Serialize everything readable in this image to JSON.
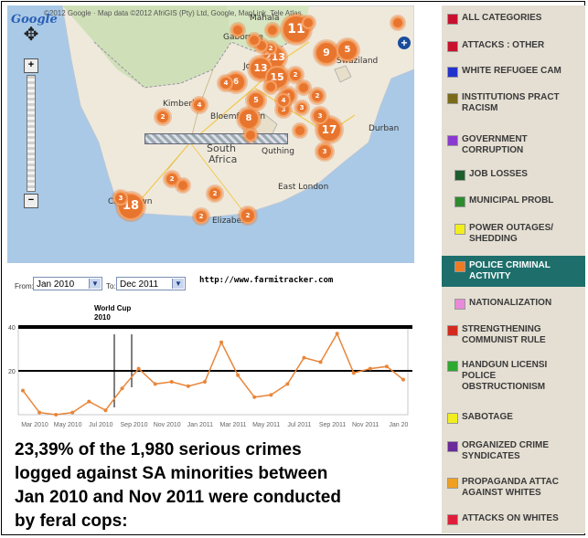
{
  "map": {
    "attribution": "©2012 Google · Map data ©2012 AfriGIS (Pty) Ltd, Google, MapLink, Tele Atlas",
    "logo": "Google",
    "place_labels": [
      {
        "text": "Mahala",
        "cls": ""
      },
      {
        "text": "Gaborone",
        "cls": ""
      },
      {
        "text": "Johann",
        "cls": ""
      },
      {
        "text": "Bloemfontein",
        "cls": ""
      },
      {
        "text": "South",
        "cls": "big"
      },
      {
        "text": "Africa",
        "cls": "big"
      },
      {
        "text": "Quthing",
        "cls": ""
      },
      {
        "text": "East London",
        "cls": ""
      },
      {
        "text": "Swaziland",
        "cls": ""
      },
      {
        "text": "Cape Town",
        "cls": ""
      },
      {
        "text": "Elizabeth",
        "cls": ""
      },
      {
        "text": "Kimberley",
        "cls": ""
      },
      {
        "text": "Durban",
        "cls": ""
      }
    ],
    "clusters": [
      {
        "label": "11"
      },
      {
        "label": "213"
      },
      {
        "label": "13"
      },
      {
        "label": "15"
      },
      {
        "label": "9"
      },
      {
        "label": "5"
      },
      {
        "label": "6"
      },
      {
        "label": "8"
      },
      {
        "label": "17"
      },
      {
        "label": "18"
      },
      {
        "label": "5"
      },
      {
        "label": "4"
      },
      {
        "label": "3"
      },
      {
        "label": "3"
      },
      {
        "label": "2"
      },
      {
        "label": "2"
      },
      {
        "label": "3"
      },
      {
        "label": "4"
      },
      {
        "label": "2"
      },
      {
        "label": "2"
      },
      {
        "label": "4"
      },
      {
        "label": "4"
      },
      {
        "label": "3"
      },
      {
        "label": "2"
      },
      {
        "label": "2"
      },
      {
        "label": "2"
      },
      {
        "label": "2"
      },
      {
        "label": "3"
      }
    ]
  },
  "controls": {
    "from_label": "From:",
    "from_value": "Jan 2010",
    "to_label": "To:",
    "to_value": "Dec 2011",
    "url": "http://www.farmitracker.com"
  },
  "chart_data": {
    "type": "line",
    "annotation": "World Cup 2010",
    "y_ticks": [
      "40",
      "20"
    ],
    "ylim": [
      0,
      40
    ],
    "x_tick_labels": [
      "Mar 2010",
      "May 2010",
      "Jul 2010",
      "Sep 2010",
      "Nov 2010",
      "Jan 2011",
      "Mar 2011",
      "May 2011",
      "Jul 2011",
      "Sep 2011",
      "Nov 2011",
      "Jan 20"
    ],
    "series": [
      {
        "color": "#e8863a",
        "values": [
          11,
          1,
          0,
          1,
          6,
          2,
          12,
          21,
          14,
          15,
          13,
          15,
          33,
          18,
          8,
          9,
          14,
          26,
          24,
          37,
          19,
          21,
          22,
          16
        ]
      }
    ],
    "reference_lines": [
      40,
      20
    ]
  },
  "caption": {
    "lines": [
      " 23,39% of the 1,980 serious crimes",
      "logged against SA minorities between",
      "Jan 2010 and Nov 2011 were conducted",
      "by feral cops:"
    ]
  },
  "legend": {
    "items": [
      {
        "label": "ALL CATEGORIES",
        "color": "#c8102e",
        "active": false
      },
      {
        "label": "ATTACKS : OTHER",
        "color": "#c8102e",
        "active": false
      },
      {
        "label": "WHITE REFUGEE CAM",
        "color": "#2233cc",
        "active": false
      },
      {
        "label": "INSTITUTIONS PRACT\nRACISM",
        "color": "#7a6a1a",
        "active": false
      },
      {
        "label": "GOVERNMENT\nCORRUPTION",
        "color": "#8a3ad0",
        "active": false
      },
      {
        "label": "JOB LOSSES",
        "color": "#1e5e2e",
        "active": false
      },
      {
        "label": "MUNICIPAL PROBL",
        "color": "#2e8a2e",
        "active": false
      },
      {
        "label": "POWER OUTAGES/\nSHEDDING",
        "color": "#f2ee1e",
        "active": false
      },
      {
        "label": "POLICE CRIMINAL\nACTIVITY",
        "color": "#f07a22",
        "active": true
      },
      {
        "label": "NATIONALIZATION",
        "color": "#e88ad8",
        "active": false
      },
      {
        "label": "STRENGTHENING\nCOMMUNIST RULE",
        "color": "#d42a1e",
        "active": false
      },
      {
        "label": "HANDGUN LICENSI\nPOLICE\nOBSTRUCTIONISM",
        "color": "#2ea82e",
        "active": false
      },
      {
        "label": "SABOTAGE",
        "color": "#f2ee1e",
        "active": false
      },
      {
        "label": "ORGANIZED CRIME\nSYNDICATES",
        "color": "#6a2a9a",
        "active": false
      },
      {
        "label": "PROPAGANDA ATTAC\nAGAINST WHITES",
        "color": "#f0a020",
        "active": false
      },
      {
        "label": "ATTACKS ON WHITES",
        "color": "#e01e3a",
        "active": false
      }
    ]
  }
}
